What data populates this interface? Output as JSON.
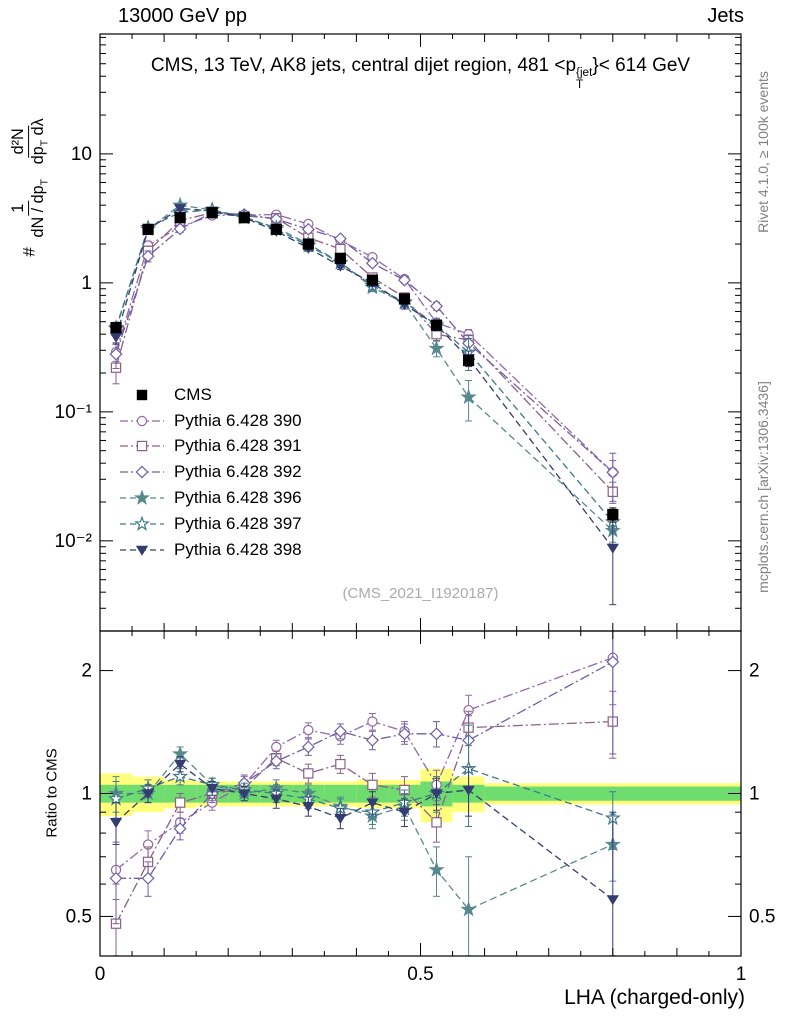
{
  "header": {
    "left": "13000 GeV pp",
    "right": "Jets"
  },
  "title": {
    "prefix": "CMS, 13 TeV, AK8 jets, central dijet region, 481 <p",
    "sup": "{jet",
    "sub": "T",
    "suffix": "}< 614 GeV"
  },
  "watermark": "(CMS_2021_I1920187)",
  "side_notes": {
    "top": "Rivet 4.1.0, ≥ 100k events",
    "bottom": "mcplots.cern.ch [arXiv:1306.3436]"
  },
  "axes": {
    "x_title": "LHA (charged-only)",
    "ratio_y_title": "Ratio to CMS",
    "ylabel": {
      "prefix": "#",
      "f1_num": "1",
      "f1_den": [
        "dN / dp",
        "T"
      ],
      "f2_num": "d²N",
      "f2_den": [
        "dp",
        "T",
        " dλ"
      ]
    },
    "main_yticks": [
      {
        "v": 10,
        "label": "10"
      },
      {
        "v": 1,
        "label": "1"
      },
      {
        "v": 0.1,
        "label": "10⁻¹"
      },
      {
        "v": 0.01,
        "label": "10⁻²"
      }
    ],
    "ratio_yticks": [
      {
        "v": 2,
        "label": "2"
      },
      {
        "v": 1,
        "label": "1"
      },
      {
        "v": 0.5,
        "label": "0.5"
      }
    ],
    "xticks": [
      {
        "v": 0,
        "label": "0"
      },
      {
        "v": 0.5,
        "label": "0.5"
      },
      {
        "v": 1,
        "label": "1"
      }
    ]
  },
  "chart_data": {
    "type": "line",
    "title": "CMS, 13 TeV, AK8 jets, central dijet region, 481 < pT(jet) < 614 GeV",
    "xlabel": "LHA (charged-only)",
    "ylabel": "# 1/(dN/dpT) d2N/(dpT dlambda)",
    "xlim": [
      0,
      1
    ],
    "main_panel": {
      "scale": "log",
      "ylim": [
        0.002,
        85
      ],
      "grid": false
    },
    "ratio_panel": {
      "scale": "log",
      "ylim": [
        0.4,
        2.5
      ],
      "label": "Ratio to CMS"
    },
    "legend_position": "middle-left",
    "x": [
      0.025,
      0.075,
      0.125,
      0.175,
      0.225,
      0.275,
      0.325,
      0.375,
      0.425,
      0.475,
      0.525,
      0.575,
      0.8
    ],
    "bin_edges": [
      0,
      0.05,
      0.1,
      0.15,
      0.2,
      0.25,
      0.3,
      0.35,
      0.4,
      0.45,
      0.5,
      0.55,
      0.6,
      1.0
    ],
    "cms": {
      "label": "CMS",
      "color": "#000000",
      "marker": "square",
      "filled": true,
      "values": [
        0.45,
        2.6,
        3.2,
        3.5,
        3.2,
        2.6,
        2.0,
        1.55,
        1.05,
        0.75,
        0.47,
        0.25,
        0.016
      ],
      "errors": [
        0.03,
        0.1,
        0.12,
        0.12,
        0.12,
        0.1,
        0.08,
        0.07,
        0.05,
        0.04,
        0.03,
        0.02,
        0.002
      ]
    },
    "series": [
      {
        "label": "Pythia 6.428 390",
        "color": "#9467a8",
        "marker": "circle",
        "filled": false,
        "dash": "dashdot",
        "values": [
          0.29,
          1.95,
          2.72,
          3.33,
          3.36,
          3.38,
          2.86,
          2.14,
          1.58,
          1.07,
          0.49,
          0.4,
          0.034
        ],
        "ratio": [
          0.65,
          0.75,
          0.85,
          0.95,
          1.05,
          1.3,
          1.43,
          1.38,
          1.5,
          1.42,
          1.05,
          1.6,
          2.15
        ],
        "ratio_err": [
          0.1,
          0.06,
          0.05,
          0.04,
          0.05,
          0.05,
          0.06,
          0.06,
          0.07,
          0.08,
          0.09,
          0.14,
          0.5
        ]
      },
      {
        "label": "Pythia 6.428 391",
        "color": "#8d5f86",
        "marker": "square",
        "filled": false,
        "dash": "dashdot",
        "values": [
          0.22,
          1.77,
          3.04,
          3.5,
          3.3,
          3.17,
          2.24,
          1.83,
          1.1,
          0.77,
          0.4,
          0.36,
          0.024
        ],
        "ratio": [
          0.48,
          0.68,
          0.95,
          1.0,
          1.03,
          1.22,
          1.12,
          1.18,
          1.05,
          1.02,
          0.85,
          1.45,
          1.5
        ],
        "ratio_err": [
          0.12,
          0.06,
          0.05,
          0.04,
          0.05,
          0.05,
          0.06,
          0.06,
          0.07,
          0.08,
          0.09,
          0.14,
          0.28
        ]
      },
      {
        "label": "Pythia 6.428 392",
        "color": "#6f5fa5",
        "marker": "diamond",
        "filled": false,
        "dash": "dashdot",
        "values": [
          0.28,
          1.61,
          2.62,
          3.5,
          3.39,
          3.12,
          2.6,
          2.2,
          1.42,
          1.05,
          0.66,
          0.34,
          0.034
        ],
        "ratio": [
          0.62,
          0.62,
          0.82,
          1.0,
          1.06,
          1.2,
          1.3,
          1.42,
          1.35,
          1.4,
          1.4,
          1.35,
          2.1
        ],
        "ratio_err": [
          0.14,
          0.06,
          0.05,
          0.05,
          0.05,
          0.05,
          0.06,
          0.06,
          0.07,
          0.08,
          0.1,
          0.2,
          0.85
        ]
      },
      {
        "label": "Pythia 6.428 396",
        "color": "#57898c",
        "marker": "star",
        "filled": true,
        "dash": "dashed",
        "values": [
          0.45,
          2.6,
          4.0,
          3.68,
          3.2,
          2.68,
          2.0,
          1.44,
          0.92,
          0.7,
          0.31,
          0.13,
          0.012
        ],
        "ratio": [
          1.0,
          1.0,
          1.25,
          1.05,
          1.0,
          1.03,
          1.0,
          0.93,
          0.88,
          0.93,
          0.65,
          0.52,
          0.75
        ],
        "ratio_err": [
          0.1,
          0.05,
          0.05,
          0.04,
          0.04,
          0.05,
          0.05,
          0.05,
          0.06,
          0.07,
          0.09,
          0.18,
          0.14
        ]
      },
      {
        "label": "Pythia 6.428 397",
        "color": "#3d7a8a",
        "marker": "star",
        "filled": false,
        "dash": "dashed",
        "values": [
          0.44,
          2.68,
          3.52,
          3.68,
          3.26,
          2.6,
          1.94,
          1.43,
          0.95,
          0.71,
          0.47,
          0.29,
          0.014
        ],
        "ratio": [
          0.97,
          1.03,
          1.1,
          1.05,
          1.02,
          1.0,
          0.97,
          0.92,
          0.9,
          0.95,
          1.0,
          1.15,
          0.87
        ],
        "ratio_err": [
          0.1,
          0.05,
          0.05,
          0.04,
          0.04,
          0.05,
          0.05,
          0.05,
          0.06,
          0.07,
          0.1,
          0.32,
          0.14
        ]
      },
      {
        "label": "Pythia 6.428 398",
        "color": "#343d70",
        "marker": "triangle-down",
        "filled": true,
        "dash": "dashed",
        "values": [
          0.38,
          2.6,
          3.78,
          3.61,
          3.2,
          2.52,
          1.86,
          1.35,
          1.0,
          0.68,
          0.47,
          0.26,
          0.0088
        ],
        "ratio": [
          0.85,
          1.0,
          1.18,
          1.03,
          1.0,
          0.97,
          0.93,
          0.87,
          0.95,
          0.9,
          1.0,
          1.02,
          0.55
        ],
        "ratio_err": [
          0.1,
          0.05,
          0.05,
          0.04,
          0.04,
          0.05,
          0.05,
          0.05,
          0.06,
          0.07,
          0.09,
          0.14,
          0.35
        ]
      }
    ],
    "ratio_bands": {
      "yellow_color": "#ffff7d",
      "green_color": "#6fdc6f",
      "edges": [
        0,
        0.05,
        0.1,
        0.15,
        0.2,
        0.25,
        0.3,
        0.35,
        0.4,
        0.45,
        0.5,
        0.55,
        0.6,
        1.0
      ],
      "yellow": [
        [
          0.88,
          1.12
        ],
        [
          0.9,
          1.1
        ],
        [
          0.92,
          1.08
        ],
        [
          0.93,
          1.07
        ],
        [
          0.93,
          1.07
        ],
        [
          0.93,
          1.07
        ],
        [
          0.93,
          1.07
        ],
        [
          0.93,
          1.07
        ],
        [
          0.92,
          1.08
        ],
        [
          0.92,
          1.08
        ],
        [
          0.85,
          1.15
        ],
        [
          0.9,
          1.1
        ],
        [
          0.94,
          1.06
        ]
      ],
      "green": [
        [
          0.95,
          1.05
        ],
        [
          0.95,
          1.05
        ],
        [
          0.95,
          1.05
        ],
        [
          0.95,
          1.05
        ],
        [
          0.95,
          1.05
        ],
        [
          0.95,
          1.05
        ],
        [
          0.95,
          1.05
        ],
        [
          0.95,
          1.05
        ],
        [
          0.95,
          1.05
        ],
        [
          0.95,
          1.05
        ],
        [
          0.93,
          1.07
        ],
        [
          0.95,
          1.05
        ],
        [
          0.96,
          1.04
        ]
      ]
    }
  }
}
